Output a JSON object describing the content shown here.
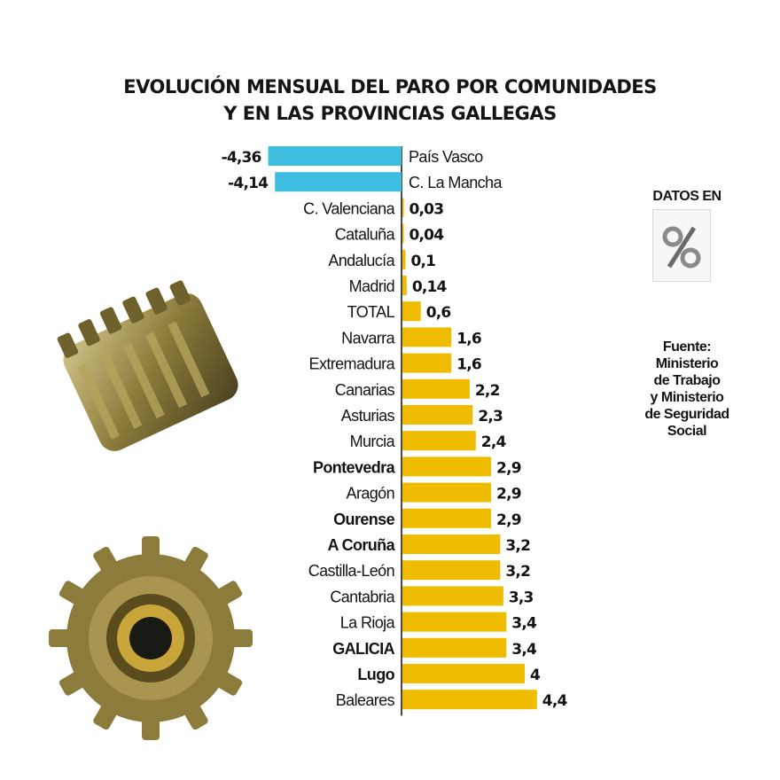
{
  "chart_data": {
    "type": "bar",
    "orientation": "horizontal",
    "title_lines": [
      "EVOLUCIÓN MENSUAL DEL PARO POR COMUNIDADES",
      "Y EN LAS PROVINCIAS GALLEGAS"
    ],
    "units_label": "DATOS EN",
    "units_symbol": "%",
    "source": {
      "label": "Fuente:",
      "lines": [
        "Ministerio",
        "de Trabajo",
        "y Ministerio",
        "de Seguridad",
        "Social"
      ]
    },
    "colors": {
      "negative": "#3dbde0",
      "positive": "#f0bc00"
    },
    "categories": [
      "País Vasco",
      "C. La Mancha",
      "C. Valenciana",
      "Cataluña",
      "Andalucía",
      "Madrid",
      "TOTAL",
      "Navarra",
      "Extremadura",
      "Canarias",
      "Asturias",
      "Murcia",
      "Pontevedra",
      "Aragón",
      "Ourense",
      "A Coruña",
      "Castilla-León",
      "Cantabria",
      "La Rioja",
      "GALICIA",
      "Lugo",
      "Baleares"
    ],
    "values": [
      -4.36,
      -4.14,
      0.03,
      0.04,
      0.1,
      0.14,
      0.6,
      1.6,
      1.6,
      2.2,
      2.3,
      2.4,
      2.9,
      2.9,
      2.9,
      3.2,
      3.2,
      3.3,
      3.4,
      3.4,
      4,
      4.4
    ],
    "value_labels": [
      "-4,36",
      "-4,14",
      "0,03",
      "0,04",
      "0,1",
      "0,14",
      "0,6",
      "1,6",
      "1,6",
      "2,2",
      "2,3",
      "2,4",
      "2,9",
      "2,9",
      "2,9",
      "3,2",
      "3,2",
      "3,3",
      "3,4",
      "3,4",
      "4",
      "4,4"
    ],
    "bold_categories": [
      "Pontevedra",
      "Ourense",
      "A Coruña",
      "GALICIA",
      "Lugo"
    ]
  }
}
